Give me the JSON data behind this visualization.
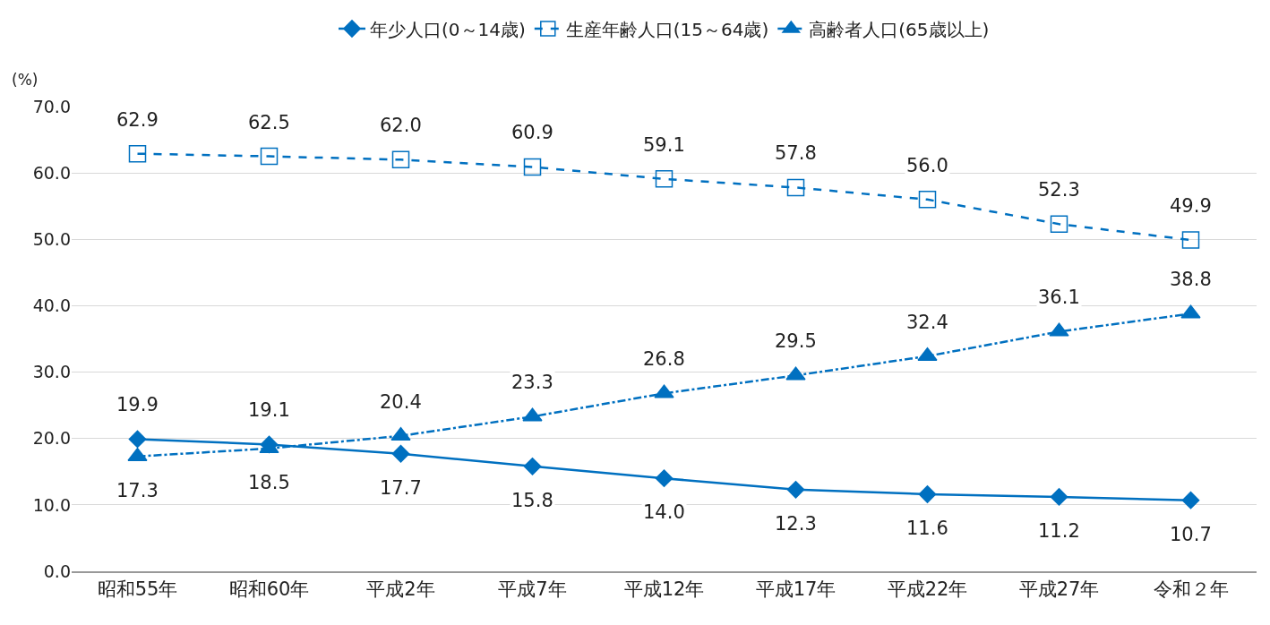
{
  "chart_data": {
    "type": "line",
    "ylabel": "(%)",
    "categories": [
      "昭和55年",
      "昭和60年",
      "平成2年",
      "平成7年",
      "平成12年",
      "平成17年",
      "平成22年",
      "平成27年",
      "令和２年"
    ],
    "series": [
      {
        "name": "年少人口(0～14歳)",
        "color": "#0070c0",
        "marker": "diamond",
        "line_style": "solid",
        "values": [
          19.9,
          19.1,
          17.7,
          15.8,
          14.0,
          12.3,
          11.6,
          11.2,
          10.7
        ],
        "value_labels": [
          "19.9",
          "19.1",
          "17.7",
          "15.8",
          "14.0",
          "12.3",
          "11.6",
          "11.2",
          "10.7"
        ]
      },
      {
        "name": "生産年齢人口(15～64歳)",
        "color": "#0070c0",
        "marker": "square",
        "line_style": "dashed",
        "values": [
          62.9,
          62.5,
          62.0,
          60.9,
          59.1,
          57.8,
          56.0,
          52.3,
          49.9
        ],
        "value_labels": [
          "62.9",
          "62.5",
          "62.0",
          "60.9",
          "59.1",
          "57.8",
          "56.0",
          "52.3",
          "49.9"
        ]
      },
      {
        "name": "高齢者人口(65歳以上)",
        "color": "#0070c0",
        "marker": "triangle",
        "line_style": "dashdot",
        "values": [
          17.3,
          18.5,
          20.4,
          23.3,
          26.8,
          29.5,
          32.4,
          36.1,
          38.8
        ],
        "value_labels": [
          "17.3",
          "18.5",
          "20.4",
          "23.3",
          "26.8",
          "29.5",
          "32.4",
          "36.1",
          "38.8"
        ]
      }
    ],
    "ylim": [
      0,
      70
    ],
    "yticks": [
      {
        "value": 0,
        "label": "0.0"
      },
      {
        "value": 10,
        "label": "10.0"
      },
      {
        "value": 20,
        "label": "20.0"
      },
      {
        "value": 30,
        "label": "30.0"
      },
      {
        "value": 40,
        "label": "40.0"
      },
      {
        "value": 50,
        "label": "50.0"
      },
      {
        "value": 60,
        "label": "60.0"
      },
      {
        "value": 70,
        "label": "70.0"
      }
    ],
    "grid": "y",
    "legend": "top"
  }
}
